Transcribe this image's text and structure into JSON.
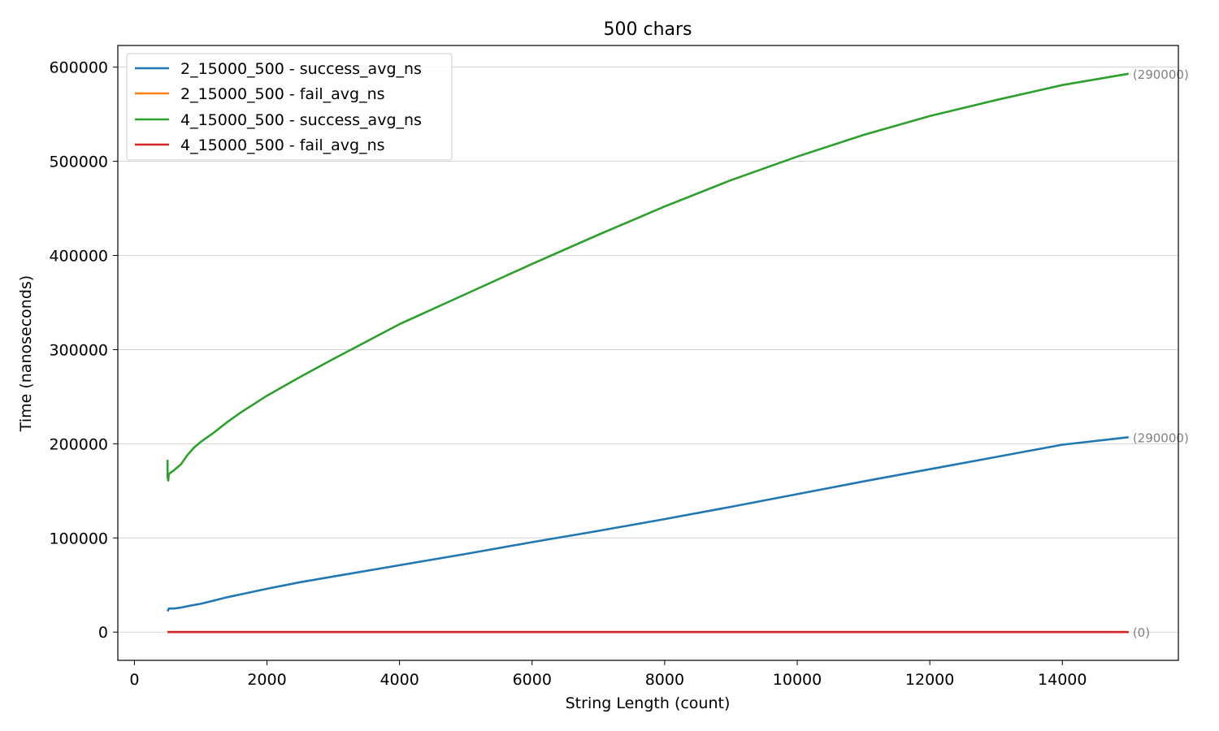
{
  "chart_data": {
    "type": "line",
    "title": "500 chars",
    "xlabel": "String Length (count)",
    "ylabel": "Time (nanoseconds)",
    "xlim": [
      -250,
      15750
    ],
    "ylim": [
      -30000,
      623000
    ],
    "xticks": [
      0,
      2000,
      4000,
      6000,
      8000,
      10000,
      12000,
      14000
    ],
    "xtick_labels": [
      "0",
      "2000",
      "4000",
      "6000",
      "8000",
      "10000",
      "12000",
      "14000"
    ],
    "yticks": [
      0,
      100000,
      200000,
      300000,
      400000,
      500000,
      600000
    ],
    "ytick_labels": [
      "0",
      "100000",
      "200000",
      "300000",
      "400000",
      "500000",
      "600000"
    ],
    "grid": "horizontal",
    "legend_position": "top-left",
    "series": [
      {
        "name": "2_15000_500 - success_avg_ns",
        "color": "#1f77b4",
        "x": [
          500,
          520,
          600,
          700,
          800,
          1000,
          1200,
          1400,
          1600,
          2000,
          2500,
          3000,
          4000,
          5000,
          6000,
          7000,
          8000,
          9000,
          10000,
          11000,
          12000,
          13000,
          14000,
          15000
        ],
        "y": [
          22000,
          25000,
          25000,
          26000,
          27500,
          30000,
          33500,
          37000,
          40000,
          46000,
          53000,
          59000,
          71000,
          83000,
          95500,
          107500,
          120000,
          133000,
          146500,
          160000,
          173000,
          186000,
          199000,
          207000
        ]
      },
      {
        "name": "2_15000_500 - fail_avg_ns",
        "color": "#ff7f0e",
        "x": [
          500,
          15000
        ],
        "y": [
          0,
          0
        ]
      },
      {
        "name": "4_15000_500 - success_avg_ns",
        "color": "#2ca02c",
        "x": [
          500,
          500,
          510,
          520,
          600,
          700,
          800,
          900,
          1000,
          1200,
          1400,
          1600,
          2000,
          2500,
          3000,
          4000,
          5000,
          6000,
          7000,
          8000,
          9000,
          10000,
          11000,
          12000,
          13000,
          14000,
          15000
        ],
        "y": [
          183000,
          165000,
          161000,
          168000,
          172000,
          178000,
          188000,
          196000,
          202000,
          212000,
          223000,
          233000,
          251000,
          271000,
          290000,
          327000,
          359000,
          391000,
          422000,
          452000,
          480000,
          505000,
          528000,
          548000,
          565000,
          581000,
          593000
        ]
      },
      {
        "name": "4_15000_500 - fail_avg_ns",
        "color": "#d62728",
        "x": [
          500,
          15000
        ],
        "y": [
          0,
          0
        ]
      }
    ],
    "annotations": [
      {
        "text": "(290000)",
        "x": 15000,
        "y": 593000
      },
      {
        "text": "(290000)",
        "x": 15000,
        "y": 207000
      },
      {
        "text": "(0)",
        "x": 15000,
        "y": 0
      }
    ]
  }
}
